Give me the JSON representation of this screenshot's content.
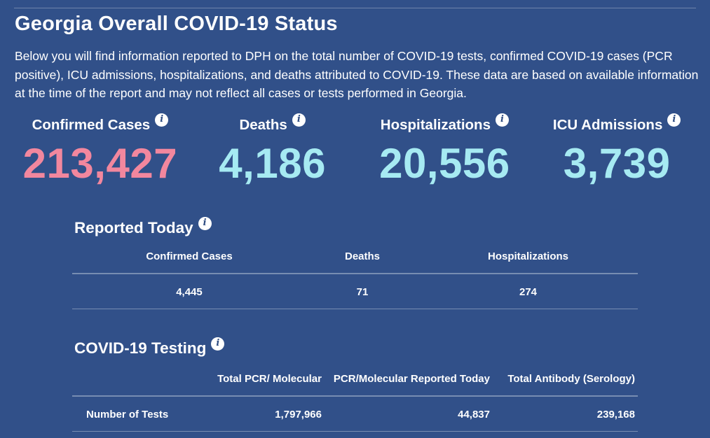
{
  "page": {
    "title": "Georgia Overall COVID-19 Status",
    "intro": "Below you will find information reported to DPH on the total number of COVID-19 tests, confirmed COVID-19 cases (PCR positive), ICU admissions, hospitalizations, and deaths attributed to COVID-19. These data are based on available information at the time of the report and may not reflect all cases or tests performed in Georgia."
  },
  "colors": {
    "background": "#315089",
    "confirmed_value": "#F2879E",
    "metric_value": "#A6EAF2",
    "text": "#FFFFFF",
    "divider": "#8FA2C0"
  },
  "icons": {
    "info": "i"
  },
  "stats": [
    {
      "label": "Confirmed Cases",
      "value": "213,427"
    },
    {
      "label": "Deaths",
      "value": "4,186"
    },
    {
      "label": "Hospitalizations",
      "value": "20,556"
    },
    {
      "label": "ICU Admissions",
      "value": "3,739"
    }
  ],
  "reported_today": {
    "heading": "Reported Today",
    "columns": [
      "Confirmed Cases",
      "Deaths",
      "Hospitalizations"
    ],
    "values": [
      "4,445",
      "71",
      "274"
    ]
  },
  "testing": {
    "heading": "COVID-19 Testing",
    "columns": [
      "Total PCR/ Molecular",
      "PCR/Molecular Reported Today",
      "Total Antibody (Serology)"
    ],
    "row_label": "Number of Tests",
    "values": [
      "1,797,966",
      "44,837",
      "239,168"
    ]
  },
  "chart_data": {
    "type": "table",
    "title": "Georgia Overall COVID-19 Status",
    "headline_metrics": {
      "Confirmed Cases": 213427,
      "Deaths": 4186,
      "Hospitalizations": 20556,
      "ICU Admissions": 3739
    },
    "reported_today": {
      "Confirmed Cases": 4445,
      "Deaths": 71,
      "Hospitalizations": 274
    },
    "testing_number_of_tests": {
      "Total PCR/ Molecular": 1797966,
      "PCR/Molecular Reported Today": 44837,
      "Total Antibody (Serology)": 239168
    }
  }
}
